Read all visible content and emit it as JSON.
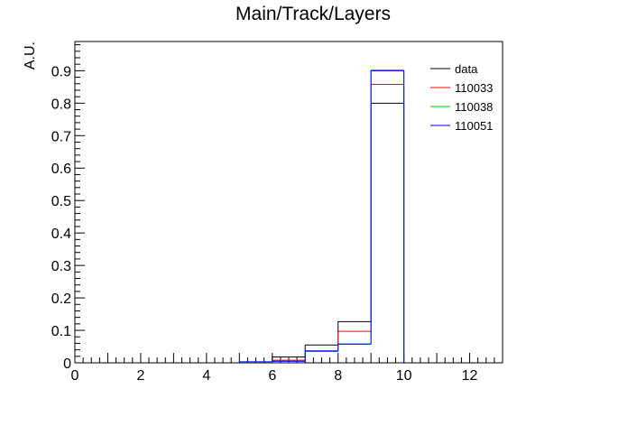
{
  "chart_data": {
    "type": "histogram",
    "title": "Main/Track/Layers",
    "xlabel": "",
    "ylabel": "A.U.",
    "xlim": [
      0,
      13
    ],
    "ylim": [
      0,
      0.99
    ],
    "x_ticks": [
      0,
      2,
      4,
      6,
      8,
      10,
      12
    ],
    "y_ticks": [
      0,
      0.1,
      0.2,
      0.3,
      0.4,
      0.5,
      0.6,
      0.7,
      0.8,
      0.9
    ],
    "y_tick_labels": [
      "0",
      "0.1",
      "0.2",
      "0.3",
      "0.4",
      "0.5",
      "0.6",
      "0.7",
      "0.8",
      "0.9"
    ],
    "x_tick_labels": [
      "0",
      "2",
      "4",
      "6",
      "8",
      "10",
      "12"
    ],
    "bin_edges": [
      5,
      6,
      7,
      8,
      9,
      10
    ],
    "legend_position": "top-right",
    "grid": false,
    "series": [
      {
        "name": "data",
        "color": "#000000",
        "values": [
          0.0,
          0.018,
          0.055,
          0.127,
          0.8
        ]
      },
      {
        "name": "110033",
        "color": "#ff0000",
        "values": [
          0.002,
          0.008,
          0.035,
          0.097,
          0.858
        ]
      },
      {
        "name": "110038",
        "color": "#00cc00",
        "values": [
          0.002,
          0.005,
          0.035,
          0.057,
          0.902
        ]
      },
      {
        "name": "110051",
        "color": "#0000ff",
        "values": [
          0.003,
          0.005,
          0.037,
          0.058,
          0.9
        ]
      }
    ]
  }
}
